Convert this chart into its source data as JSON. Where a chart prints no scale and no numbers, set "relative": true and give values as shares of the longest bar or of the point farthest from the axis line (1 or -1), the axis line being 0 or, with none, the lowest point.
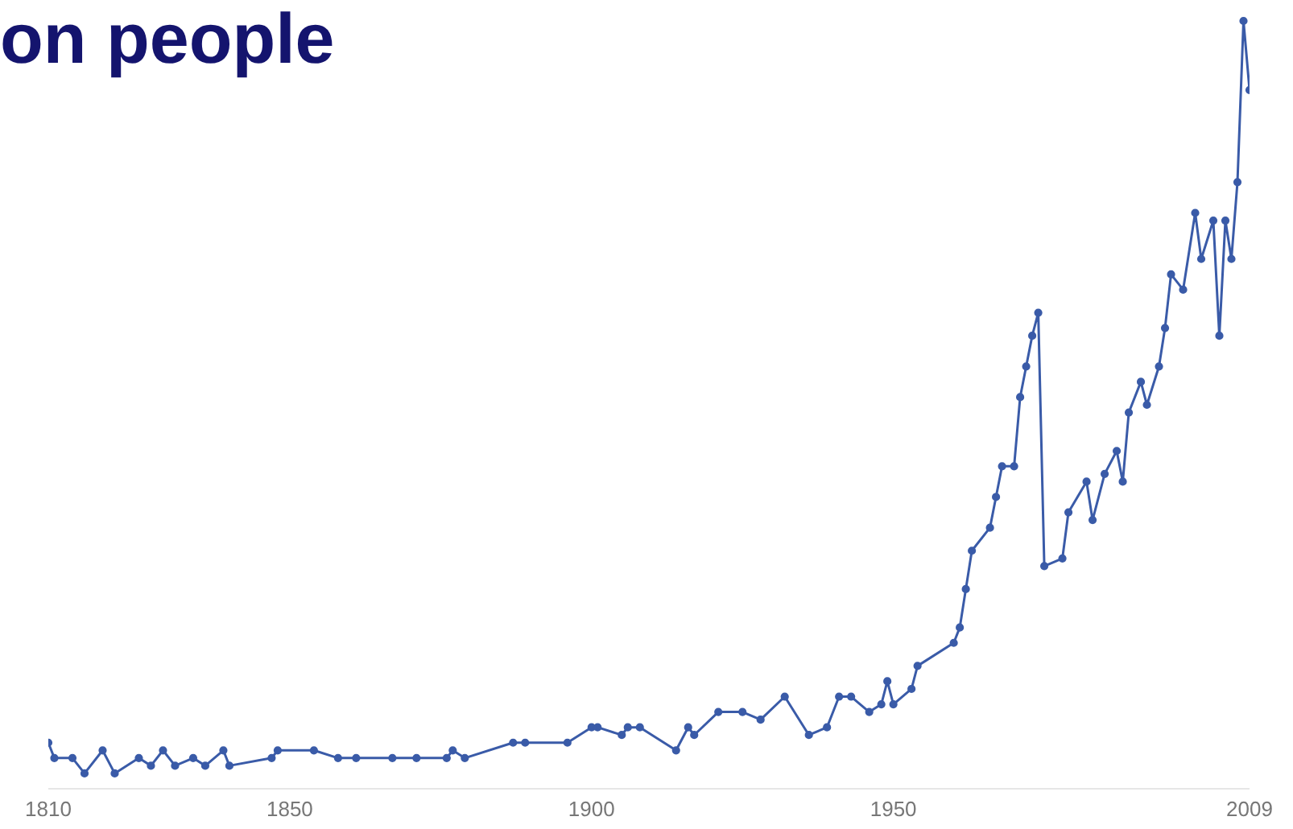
{
  "chart_data": {
    "type": "line",
    "title": "on people",
    "relative": true,
    "marker": "circle",
    "line_style": "solid",
    "xlim": [
      1810,
      2009
    ],
    "xticks": [
      1810,
      1850,
      1900,
      1950,
      2009
    ],
    "x": [
      1810,
      1811,
      1814,
      1816,
      1819,
      1821,
      1825,
      1827,
      1829,
      1831,
      1834,
      1836,
      1839,
      1840,
      1847,
      1848,
      1854,
      1858,
      1861,
      1867,
      1871,
      1876,
      1877,
      1879,
      1887,
      1889,
      1896,
      1900,
      1901,
      1905,
      1906,
      1908,
      1914,
      1916,
      1917,
      1921,
      1925,
      1928,
      1932,
      1936,
      1939,
      1941,
      1943,
      1946,
      1948,
      1949,
      1950,
      1953,
      1954,
      1960,
      1961,
      1962,
      1963,
      1966,
      1967,
      1968,
      1970,
      1971,
      1972,
      1973,
      1974,
      1975,
      1978,
      1979,
      1982,
      1983,
      1985,
      1987,
      1988,
      1989,
      1991,
      1992,
      1994,
      1995,
      1996,
      1998,
      2000,
      2001,
      2003,
      2004,
      2005,
      2006,
      2007,
      2008,
      2009
    ],
    "series": [
      {
        "color": "#3a5ba8",
        "values": [
          0.06,
          0.04,
          0.04,
          0.02,
          0.05,
          0.02,
          0.04,
          0.03,
          0.05,
          0.03,
          0.04,
          0.03,
          0.05,
          0.03,
          0.04,
          0.05,
          0.05,
          0.04,
          0.04,
          0.04,
          0.04,
          0.04,
          0.05,
          0.04,
          0.06,
          0.06,
          0.06,
          0.08,
          0.08,
          0.07,
          0.08,
          0.08,
          0.05,
          0.08,
          0.07,
          0.1,
          0.1,
          0.09,
          0.12,
          0.07,
          0.08,
          0.12,
          0.12,
          0.1,
          0.11,
          0.14,
          0.11,
          0.13,
          0.16,
          0.19,
          0.21,
          0.26,
          0.31,
          0.34,
          0.38,
          0.42,
          0.42,
          0.51,
          0.55,
          0.59,
          0.62,
          0.29,
          0.3,
          0.36,
          0.4,
          0.35,
          0.41,
          0.44,
          0.4,
          0.49,
          0.53,
          0.5,
          0.55,
          0.6,
          0.67,
          0.65,
          0.75,
          0.69,
          0.74,
          0.59,
          0.74,
          0.69,
          0.79,
          1,
          0.91
        ]
      }
    ]
  }
}
